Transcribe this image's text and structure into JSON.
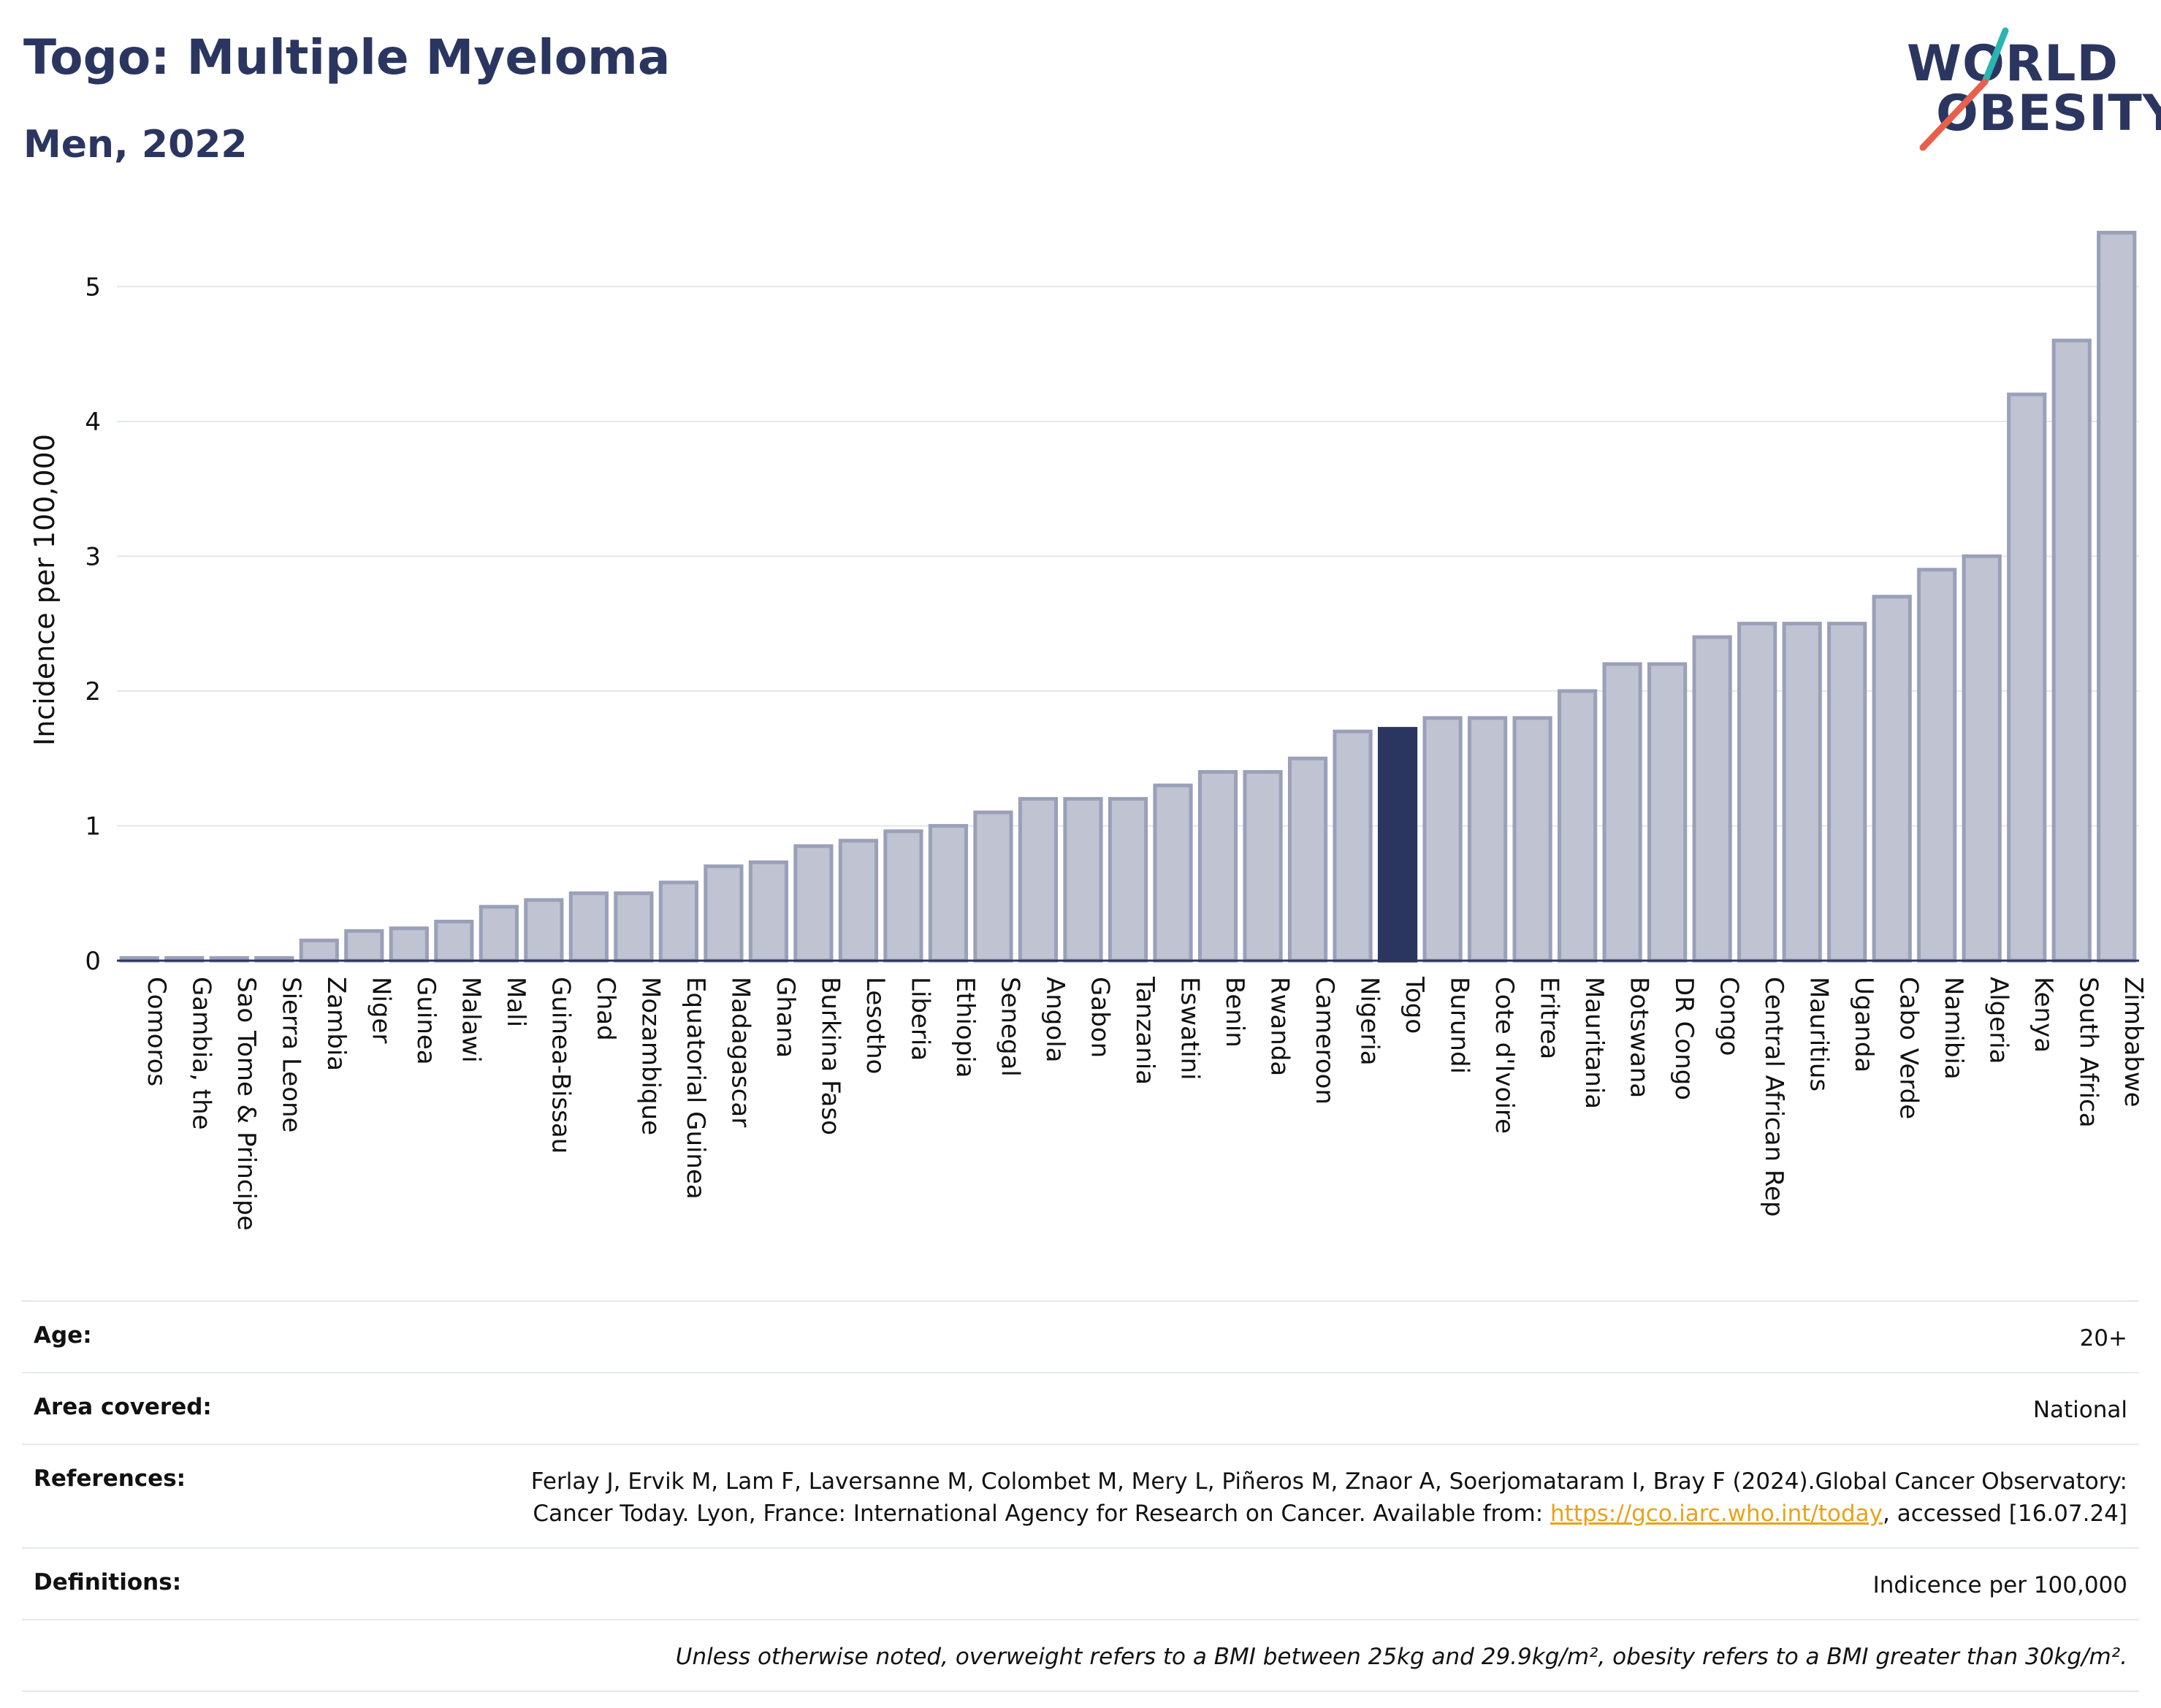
{
  "header": {
    "title": "Togo: Multiple Myeloma",
    "subtitle": "Men, 2022"
  },
  "logo": {
    "line1": "WORLD",
    "line2": "OBESITY",
    "slash_color_top": "#2bb5b0",
    "slash_color_bottom": "#e8604c"
  },
  "colors": {
    "bar": "#bfc3d2",
    "bar_border": "#9aa0b8",
    "highlight": "#2b3660",
    "grid": "#e3e6ef",
    "text": "#111111"
  },
  "chart_data": {
    "type": "bar",
    "ylabel": "Incidence per 100,000",
    "xlabel": "",
    "ylim": [
      0,
      5.5
    ],
    "yticks": [
      0,
      1,
      2,
      3,
      4,
      5
    ],
    "grid": true,
    "highlight": "Togo",
    "categories": [
      "Comoros",
      "Gambia, the",
      "Sao Tome & Principe",
      "Sierra Leone",
      "Zambia",
      "Niger",
      "Guinea",
      "Malawi",
      "Mali",
      "Guinea-Bissau",
      "Chad",
      "Mozambique",
      "Equatorial Guinea",
      "Madagascar",
      "Ghana",
      "Burkina Faso",
      "Lesotho",
      "Liberia",
      "Ethiopia",
      "Senegal",
      "Angola",
      "Gabon",
      "Tanzania",
      "Eswatini",
      "Benin",
      "Rwanda",
      "Cameroon",
      "Nigeria",
      "Togo",
      "Burundi",
      "Cote d'Ivoire",
      "Eritrea",
      "Mauritania",
      "Botswana",
      "DR Congo",
      "Congo",
      "Central African Rep",
      "Mauritius",
      "Uganda",
      "Cabo Verde",
      "Namibia",
      "Algeria",
      "Kenya",
      "South Africa",
      "Zimbabwe"
    ],
    "values": [
      0.02,
      0.02,
      0.02,
      0.02,
      0.15,
      0.22,
      0.24,
      0.29,
      0.4,
      0.45,
      0.5,
      0.5,
      0.58,
      0.7,
      0.73,
      0.85,
      0.89,
      0.96,
      1.0,
      1.1,
      1.2,
      1.2,
      1.2,
      1.3,
      1.4,
      1.4,
      1.5,
      1.7,
      1.72,
      1.8,
      1.8,
      1.8,
      2.0,
      2.2,
      2.2,
      2.4,
      2.5,
      2.5,
      2.5,
      2.7,
      2.9,
      3.0,
      4.2,
      4.6,
      5.4
    ]
  },
  "info": {
    "age_label": "Age:",
    "age_value": "20+",
    "area_label": "Area covered:",
    "area_value": "National",
    "ref_label": "References:",
    "ref_text_1": "Ferlay J, Ervik M, Lam F, Laversanne M, Colombet M, Mery L, Piñeros M, Znaor A, Soerjomataram I, Bray F (2024).Global Cancer Observatory: Cancer Today. Lyon, France: International Agency for Research on Cancer. Available from: ",
    "ref_link": "https://gco.iarc.who.int/today",
    "ref_text_2": ", accessed [16.07.24]",
    "def_label": "Definitions:",
    "def_value": "Indicence per 100,000",
    "note": "Unless otherwise noted, overweight refers to a BMI between 25kg and 29.9kg/m², obesity refers to a BMI greater than 30kg/m²."
  }
}
